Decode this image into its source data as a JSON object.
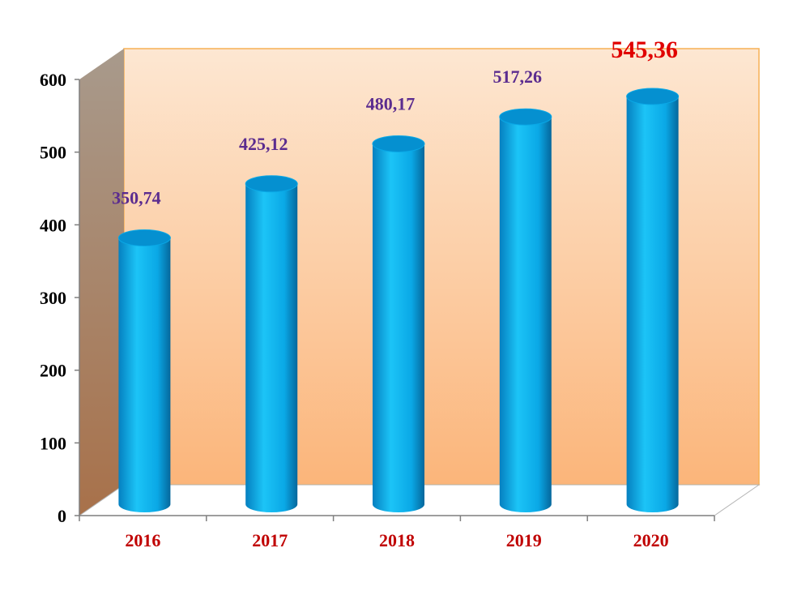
{
  "chart_data": {
    "type": "bar",
    "title": "",
    "xlabel": "",
    "ylabel": "",
    "categories": [
      "2016",
      "2017",
      "2018",
      "2019",
      "2020"
    ],
    "values": [
      350.74,
      425.12,
      480.17,
      517.26,
      545.36
    ],
    "value_labels": [
      "350,74",
      "425,12",
      "480,17",
      "517,26",
      "545,36"
    ],
    "highlight_index": 4,
    "ylim": [
      0,
      600
    ],
    "yticks": [
      "0",
      "100",
      "200",
      "300",
      "400",
      "500",
      "600"
    ],
    "grid": false,
    "legend": "none",
    "style": "3d-cylinder",
    "colors": {
      "bar": "#0aa8e6",
      "bar_dark": "#0571a8",
      "bar_top": "#0590d0",
      "wall_top": "#fde7d2",
      "wall_bottom": "#fbb57a",
      "side_wall_top": "#a89a8c",
      "side_wall_bottom": "#a8714a",
      "wall_border": "#f7b055",
      "category_text": "#c00000",
      "value_text": "#5b2c8f",
      "highlight_text": "#e00000"
    }
  }
}
